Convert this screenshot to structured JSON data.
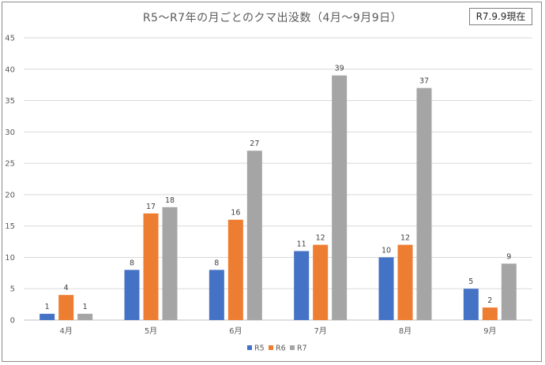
{
  "badge": "R7.9.9現在",
  "chart_data": {
    "type": "bar",
    "title": "R5〜R7年の月ごとのクマ出没数（4月〜9月9日）",
    "categories": [
      "4月",
      "5月",
      "6月",
      "7月",
      "8月",
      "9月"
    ],
    "series": [
      {
        "name": "R5",
        "values": [
          1,
          8,
          8,
          11,
          10,
          5
        ],
        "color": "#4472c4"
      },
      {
        "name": "R6",
        "values": [
          4,
          17,
          16,
          12,
          12,
          2
        ],
        "color": "#ed7d31"
      },
      {
        "name": "R7",
        "values": [
          1,
          18,
          27,
          39,
          37,
          9
        ],
        "color": "#a5a5a5"
      }
    ],
    "ylim": [
      0,
      45
    ],
    "yticks": [
      0,
      5,
      10,
      15,
      20,
      25,
      30,
      35,
      40,
      45
    ],
    "grid": true,
    "legend": "bottom"
  }
}
